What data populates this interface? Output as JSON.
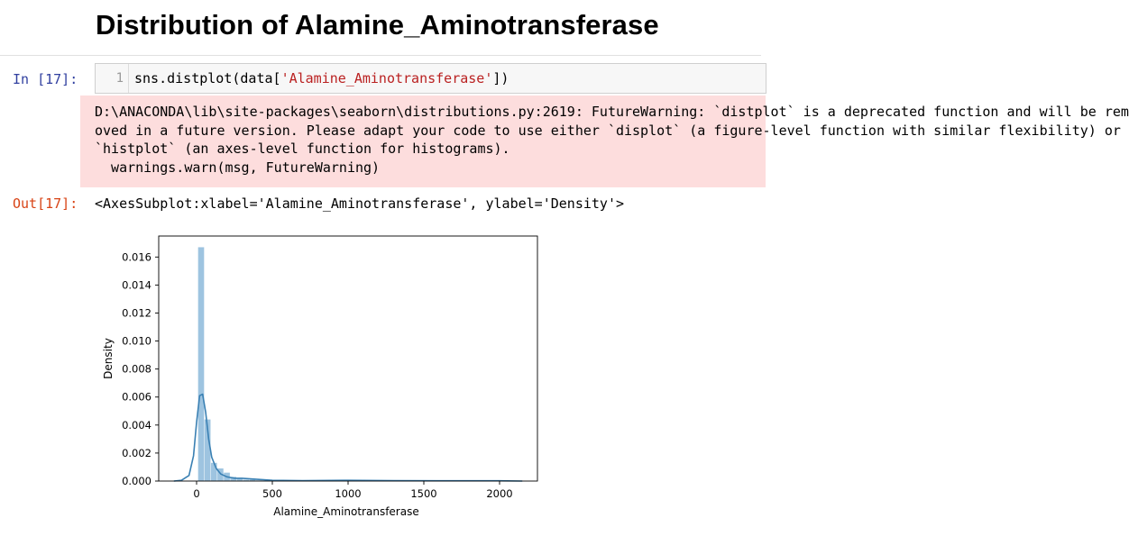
{
  "heading": "Distribution of Alamine_Aminotransferase",
  "input_cell": {
    "prompt": "In [17]:",
    "line_number": "1",
    "code_prefix": "sns.distplot(data[",
    "code_string": "'Alamine_Aminotransferase'",
    "code_suffix": "])"
  },
  "stderr": {
    "lines": [
      "D:\\ANACONDA\\lib\\site-packages\\seaborn\\distributions.py:2619: FutureWarning: `distplot` is a deprecated function and will be rem",
      "oved in a future version. Please adapt your code to use either `displot` (a figure-level function with similar flexibility) or",
      "`histplot` (an axes-level function for histograms).",
      "  warnings.warn(msg, FutureWarning)"
    ]
  },
  "output_cell": {
    "prompt": "Out[17]:",
    "text": "<AxesSubplot:xlabel='Alamine_Aminotransferase', ylabel='Density'>"
  },
  "colors": {
    "bar": "#9ec4e0",
    "kde": "#3a80b3",
    "in_prompt": "#303f9f",
    "out_prompt": "#d84315",
    "stderr_bg": "#fddddd"
  },
  "chart_data": {
    "type": "bar",
    "xlabel": "Alamine_Aminotransferase",
    "ylabel": "Density",
    "xlim": [
      -250,
      2250
    ],
    "ylim": [
      0,
      0.0175
    ],
    "xticks": [
      "0",
      "500",
      "1000",
      "1500",
      "2000"
    ],
    "yticks": [
      "0.000",
      "0.002",
      "0.004",
      "0.006",
      "0.008",
      "0.010",
      "0.012",
      "0.014",
      "0.016"
    ],
    "bin_width": 42.5,
    "bins": [
      {
        "x0": 10,
        "x1": 52.5,
        "density": 0.0167
      },
      {
        "x0": 52.5,
        "x1": 95,
        "density": 0.0044
      },
      {
        "x0": 95,
        "x1": 137.5,
        "density": 0.0013
      },
      {
        "x0": 137.5,
        "x1": 180,
        "density": 0.0009
      },
      {
        "x0": 180,
        "x1": 222.5,
        "density": 0.0006
      },
      {
        "x0": 222.5,
        "x1": 265,
        "density": 0.0003
      },
      {
        "x0": 265,
        "x1": 307.5,
        "density": 0.0002
      },
      {
        "x0": 307.5,
        "x1": 350,
        "density": 0.0001
      },
      {
        "x0": 350,
        "x1": 392.5,
        "density": 0.0001
      },
      {
        "x0": 392.5,
        "x1": 435,
        "density": 5e-05
      }
    ],
    "kde": {
      "x": [
        -150,
        -100,
        -50,
        -20,
        0,
        20,
        40,
        60,
        80,
        100,
        130,
        160,
        200,
        250,
        300,
        400,
        500,
        700,
        1000,
        1300,
        1600,
        2000,
        2150
      ],
      "y": [
        0,
        5e-05,
        0.0004,
        0.0018,
        0.0042,
        0.0061,
        0.0062,
        0.0049,
        0.003,
        0.0017,
        0.0009,
        0.0005,
        0.0003,
        0.0002,
        0.0002,
        0.00012,
        5e-05,
        3e-05,
        5e-05,
        3e-05,
        2e-05,
        2e-05,
        0.0
      ]
    }
  }
}
